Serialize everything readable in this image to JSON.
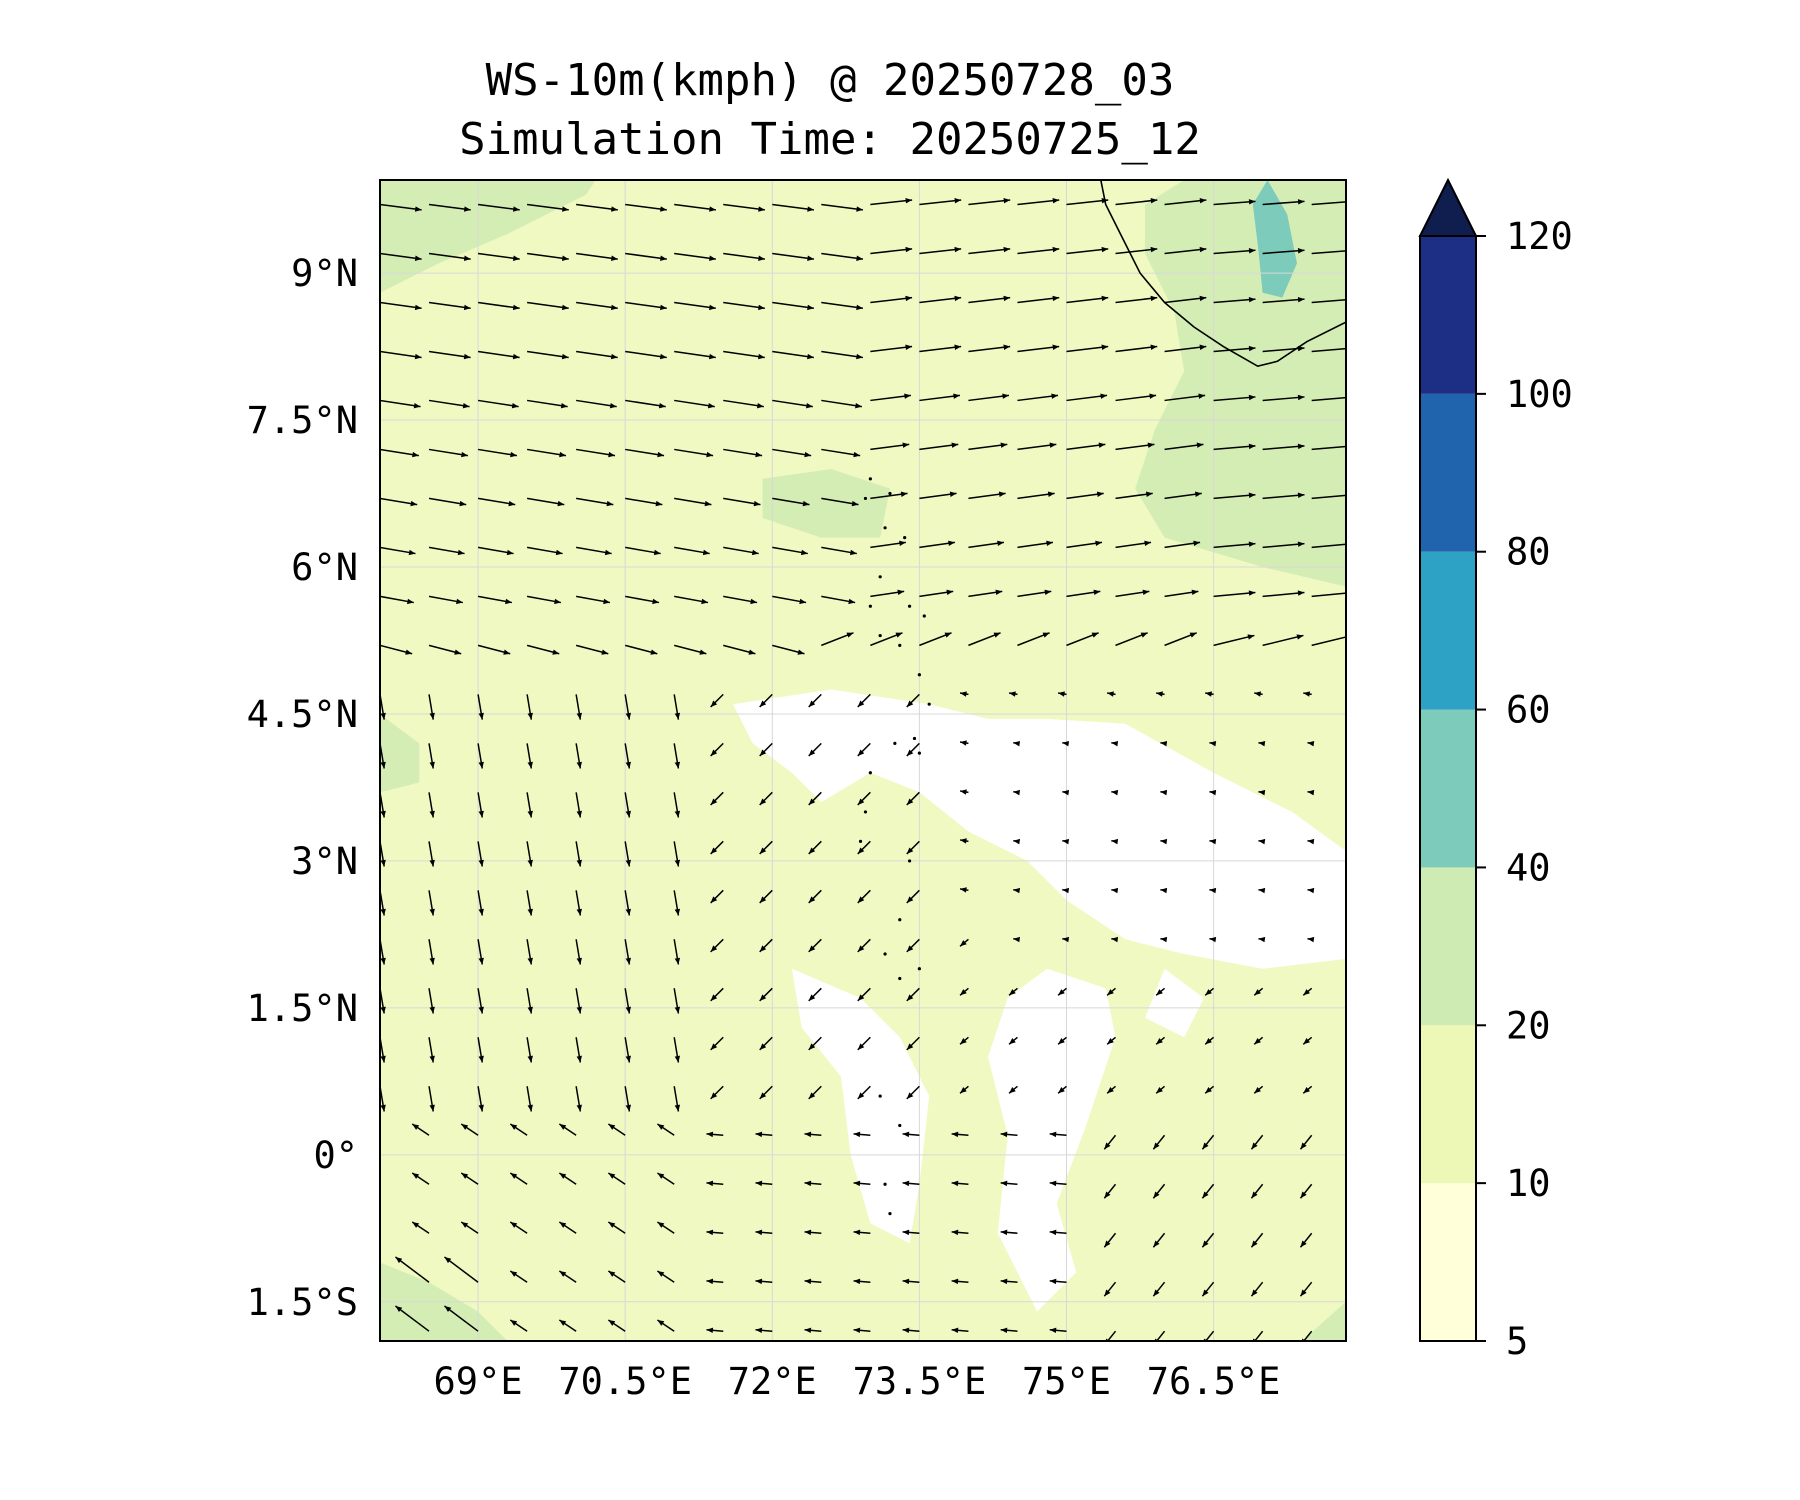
{
  "title_line1": "WS-10m(kmph) @ 20250728_03",
  "title_line2": "Simulation Time: 20250725_12",
  "map": {
    "lon_range": [
      68.0,
      77.85
    ],
    "lat_range": [
      -1.9,
      9.95
    ],
    "lat_ticks": [
      {
        "value": 9.0,
        "label": "9°N"
      },
      {
        "value": 7.5,
        "label": "7.5°N"
      },
      {
        "value": 6.0,
        "label": "6°N"
      },
      {
        "value": 4.5,
        "label": "4.5°N"
      },
      {
        "value": 3.0,
        "label": "3°N"
      },
      {
        "value": 1.5,
        "label": "1.5°N"
      },
      {
        "value": 0.0,
        "label": "0°"
      },
      {
        "value": -1.5,
        "label": "1.5°S"
      }
    ],
    "lon_ticks": [
      {
        "value": 69.0,
        "label": "69°E"
      },
      {
        "value": 70.5,
        "label": "70.5°E"
      },
      {
        "value": 72.0,
        "label": "72°E"
      },
      {
        "value": 73.5,
        "label": "73.5°E"
      },
      {
        "value": 75.0,
        "label": "75°E"
      },
      {
        "value": 76.5,
        "label": "76.5°E"
      }
    ],
    "gridlines": true,
    "calm_regions": [
      [
        [
          71.6,
          4.6
        ],
        [
          72.6,
          4.75
        ],
        [
          73.6,
          4.6
        ],
        [
          74.2,
          4.45
        ],
        [
          74.8,
          4.45
        ],
        [
          75.6,
          4.4
        ],
        [
          76.5,
          3.9
        ],
        [
          77.3,
          3.5
        ],
        [
          77.85,
          3.1
        ],
        [
          77.85,
          2.0
        ],
        [
          77.0,
          1.9
        ],
        [
          76.2,
          2.05
        ],
        [
          75.6,
          2.2
        ],
        [
          75.0,
          2.6
        ],
        [
          74.6,
          3.0
        ],
        [
          74.0,
          3.3
        ],
        [
          73.5,
          3.7
        ],
        [
          73.0,
          3.9
        ],
        [
          72.5,
          3.6
        ],
        [
          72.2,
          3.9
        ],
        [
          71.8,
          4.2
        ]
      ],
      [
        [
          72.2,
          1.9
        ],
        [
          72.9,
          1.6
        ],
        [
          73.3,
          1.2
        ],
        [
          73.6,
          0.6
        ],
        [
          73.5,
          -0.3
        ],
        [
          73.4,
          -0.9
        ],
        [
          73.0,
          -0.7
        ],
        [
          72.8,
          0.0
        ],
        [
          72.7,
          0.8
        ],
        [
          72.3,
          1.3
        ]
      ],
      [
        [
          74.8,
          1.9
        ],
        [
          75.4,
          1.7
        ],
        [
          75.5,
          1.2
        ],
        [
          75.2,
          0.3
        ],
        [
          74.9,
          -0.5
        ],
        [
          75.1,
          -1.2
        ],
        [
          74.7,
          -1.6
        ],
        [
          74.3,
          -0.8
        ],
        [
          74.4,
          0.2
        ],
        [
          74.2,
          1.0
        ],
        [
          74.4,
          1.6
        ]
      ],
      [
        [
          76.0,
          1.9
        ],
        [
          76.4,
          1.6
        ],
        [
          76.2,
          1.2
        ],
        [
          75.8,
          1.4
        ]
      ]
    ],
    "moderate_regions": [
      [
        [
          68.0,
          8.8
        ],
        [
          68.6,
          9.1
        ],
        [
          69.3,
          9.4
        ],
        [
          70.1,
          9.8
        ],
        [
          70.2,
          9.95
        ],
        [
          68.0,
          9.95
        ]
      ],
      [
        [
          71.9,
          6.9
        ],
        [
          72.6,
          7.0
        ],
        [
          73.2,
          6.8
        ],
        [
          73.1,
          6.3
        ],
        [
          72.5,
          6.3
        ],
        [
          71.9,
          6.5
        ]
      ],
      [
        [
          76.2,
          9.95
        ],
        [
          77.85,
          9.95
        ],
        [
          77.85,
          5.8
        ],
        [
          77.0,
          6.0
        ],
        [
          76.0,
          6.3
        ],
        [
          75.7,
          6.8
        ],
        [
          75.9,
          7.4
        ],
        [
          76.2,
          8.0
        ],
        [
          76.1,
          8.6
        ],
        [
          75.8,
          9.2
        ],
        [
          75.8,
          9.7
        ]
      ],
      [
        [
          68.0,
          4.5
        ],
        [
          68.4,
          4.2
        ],
        [
          68.4,
          3.8
        ],
        [
          68.0,
          3.7
        ]
      ],
      [
        [
          68.0,
          -1.9
        ],
        [
          68.0,
          -1.1
        ],
        [
          68.5,
          -1.3
        ],
        [
          69.0,
          -1.6
        ],
        [
          69.3,
          -1.9
        ]
      ],
      [
        [
          77.4,
          -1.9
        ],
        [
          77.85,
          -1.9
        ],
        [
          77.85,
          -1.5
        ]
      ]
    ],
    "strong_regions": [
      [
        [
          77.05,
          9.95
        ],
        [
          77.25,
          9.6
        ],
        [
          77.35,
          9.1
        ],
        [
          77.2,
          8.75
        ],
        [
          77.0,
          8.8
        ],
        [
          76.95,
          9.3
        ],
        [
          76.9,
          9.7
        ]
      ]
    ],
    "coastline": [
      [
        75.35,
        9.95
      ],
      [
        75.4,
        9.7
      ],
      [
        75.55,
        9.4
      ],
      [
        75.75,
        9.0
      ],
      [
        76.0,
        8.7
      ],
      [
        76.3,
        8.45
      ],
      [
        76.6,
        8.25
      ],
      [
        76.95,
        8.05
      ],
      [
        77.15,
        8.1
      ],
      [
        77.45,
        8.3
      ],
      [
        77.85,
        8.5
      ]
    ],
    "islands": [
      [
        73.0,
        6.9
      ],
      [
        72.95,
        6.7
      ],
      [
        73.2,
        6.75
      ],
      [
        73.15,
        6.4
      ],
      [
        73.35,
        6.3
      ],
      [
        73.1,
        5.9
      ],
      [
        73.0,
        5.6
      ],
      [
        73.4,
        5.6
      ],
      [
        73.55,
        5.5
      ],
      [
        73.1,
        5.3
      ],
      [
        73.3,
        5.2
      ],
      [
        73.5,
        4.9
      ],
      [
        73.6,
        4.6
      ],
      [
        73.45,
        4.25
      ],
      [
        73.5,
        4.1
      ],
      [
        73.25,
        4.2
      ],
      [
        73.0,
        3.9
      ],
      [
        72.95,
        3.5
      ],
      [
        72.9,
        3.2
      ],
      [
        73.4,
        3.0
      ],
      [
        72.9,
        2.6
      ],
      [
        73.3,
        2.4
      ],
      [
        73.15,
        2.05
      ],
      [
        73.5,
        1.9
      ],
      [
        73.3,
        1.8
      ],
      [
        73.1,
        0.6
      ],
      [
        73.3,
        0.3
      ],
      [
        73.15,
        -0.3
      ],
      [
        73.2,
        -0.6
      ]
    ],
    "wind_field": {
      "lon_start": 68.0,
      "lon_step": 0.5,
      "lon_count": 21,
      "lat_start": 9.7,
      "lat_step": -0.5,
      "lat_count": 24
    }
  },
  "colorbar": {
    "ticks": [
      "5",
      "10",
      "20",
      "40",
      "60",
      "80",
      "100",
      "120"
    ],
    "colors": [
      "#ffffd9",
      "#eef8b6",
      "#cdebb3",
      "#7ccbbb",
      "#2ea2c5",
      "#2164ae",
      "#1d2f85"
    ],
    "extend_color": "#0f1d4f"
  }
}
